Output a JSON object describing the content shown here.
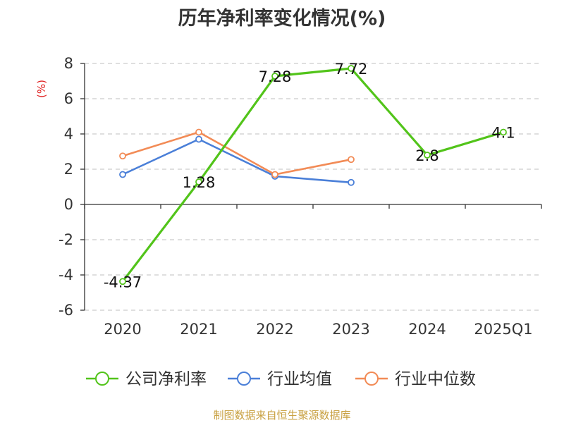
{
  "chart_data": {
    "type": "line",
    "title": "历年净利率变化情况(%)",
    "ylabel": "(%)",
    "categories": [
      "2020",
      "2021",
      "2022",
      "2023",
      "2024",
      "2025Q1"
    ],
    "ylim": [
      -6,
      8
    ],
    "yticks": [
      -6,
      -4,
      -2,
      0,
      2,
      4,
      6,
      8
    ],
    "grid": true,
    "legend_position": "bottom",
    "series": [
      {
        "name": "公司净利率",
        "color": "#52c41a",
        "values": [
          -4.37,
          1.28,
          7.28,
          7.72,
          2.8,
          4.1
        ],
        "labels": [
          "-4.37",
          "1.28",
          "7.28",
          "7.72",
          "2.8",
          "4.1"
        ]
      },
      {
        "name": "行业均值",
        "color": "#4a7fd8",
        "values": [
          1.7,
          3.7,
          1.6,
          1.25,
          null,
          null
        ]
      },
      {
        "name": "行业中位数",
        "color": "#f28b56",
        "values": [
          2.75,
          4.1,
          1.7,
          2.55,
          null,
          null
        ]
      }
    ]
  },
  "footer": "制图数据来自恒生聚源数据库"
}
